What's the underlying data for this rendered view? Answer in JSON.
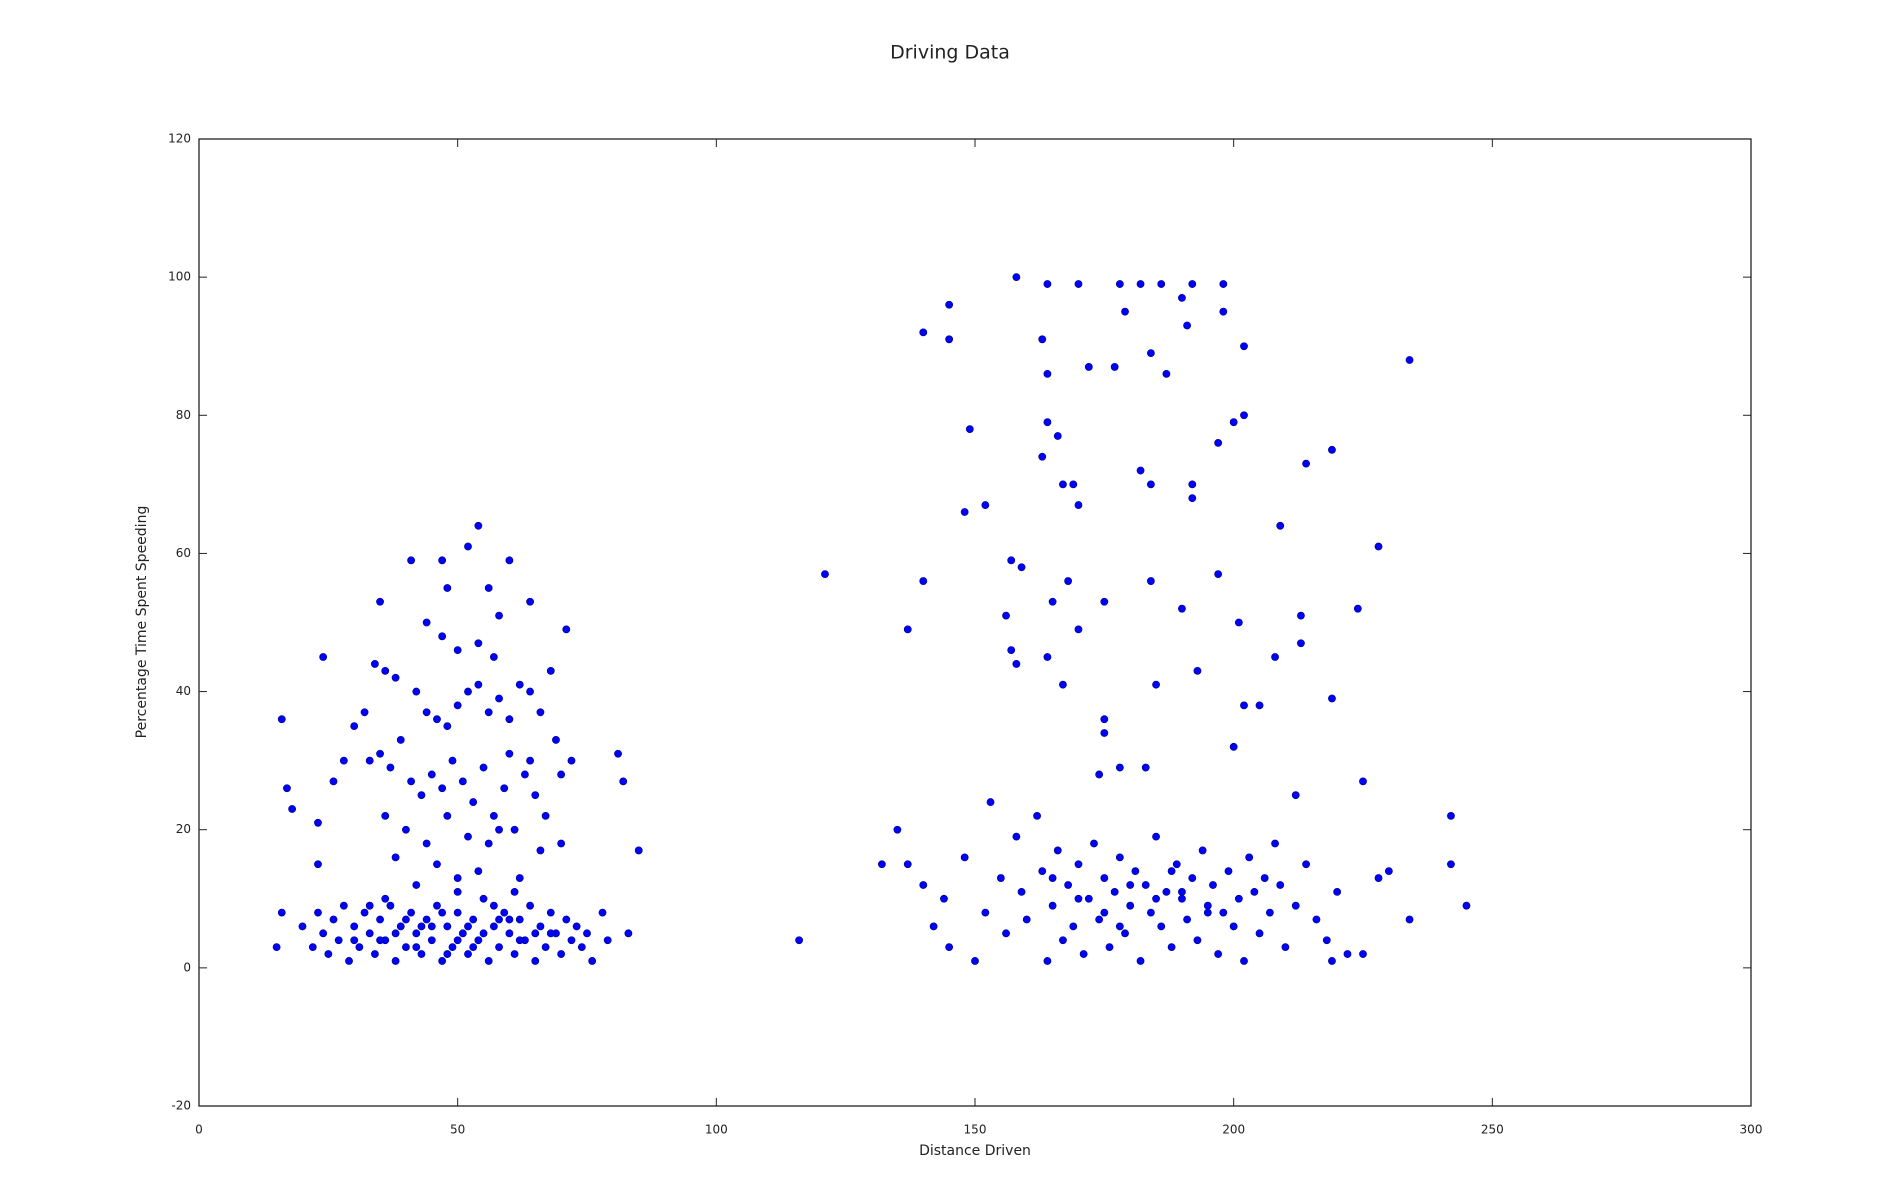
{
  "chart_data": {
    "type": "scatter",
    "title": "Driving Data",
    "x_label": "Distance Driven",
    "y_label": "Percentage Time Spent Speeding",
    "color": "#0000ff",
    "xlim": [
      0,
      300
    ],
    "xticks": [
      0,
      50,
      100,
      150,
      200,
      250,
      300
    ],
    "ylim": [
      -20,
      120
    ],
    "yticks": [
      -20,
      0,
      20,
      40,
      60,
      80,
      100,
      120
    ],
    "x": [
      158,
      164,
      170,
      178,
      182,
      186,
      192,
      198,
      145,
      179,
      198,
      140,
      145,
      163,
      190,
      191,
      202,
      234,
      172,
      177,
      164,
      187,
      184,
      149,
      164,
      200,
      202,
      197,
      214,
      219,
      163,
      166,
      182,
      167,
      169,
      184,
      192,
      192,
      148,
      152,
      170,
      209,
      228,
      121,
      140,
      157,
      159,
      168,
      184,
      197,
      156,
      165,
      175,
      190,
      224,
      137,
      170,
      201,
      213,
      213,
      157,
      158,
      164,
      208,
      193,
      167,
      185,
      219,
      202,
      205,
      175,
      175,
      200,
      174,
      178,
      183,
      225,
      212,
      242,
      116,
      245,
      234,
      242,
      54,
      52,
      47,
      60,
      41,
      16,
      17,
      18,
      85,
      81,
      82,
      16,
      15,
      83,
      24,
      71,
      35,
      64,
      56,
      48,
      23,
      23,
      69,
      20,
      22,
      23,
      24,
      25,
      26,
      27,
      28,
      29,
      30,
      31,
      32,
      33,
      34,
      35,
      36,
      37,
      38,
      39,
      40,
      41,
      42,
      43,
      44,
      45,
      46,
      47,
      48,
      49,
      50,
      51,
      52,
      53,
      54,
      55,
      56,
      57,
      58,
      59,
      60,
      61,
      62,
      63,
      64,
      65,
      66,
      67,
      68,
      69,
      70,
      71,
      72,
      73,
      74,
      75,
      76,
      78,
      79,
      45,
      50,
      52,
      48,
      55,
      58,
      42,
      38,
      62,
      47,
      53,
      57,
      43,
      35,
      65,
      60,
      40,
      30,
      68,
      33,
      50,
      61,
      36,
      34,
      36,
      38,
      42,
      44,
      46,
      48,
      50,
      52,
      54,
      56,
      58,
      60,
      62,
      64,
      66,
      32,
      30,
      33,
      35,
      37,
      39,
      41,
      43,
      45,
      47,
      49,
      51,
      53,
      55,
      57,
      59,
      61,
      63,
      65,
      67,
      40,
      44,
      48,
      52,
      56,
      58,
      38,
      46,
      54,
      62,
      42,
      50,
      60,
      64,
      68,
      54,
      50,
      57,
      47,
      28,
      70,
      72,
      26,
      36,
      66,
      70,
      44,
      58,
      135,
      137,
      132,
      140,
      142,
      145,
      144,
      148,
      150,
      152,
      153,
      155,
      156,
      158,
      159,
      160,
      162,
      163,
      164,
      165,
      166,
      167,
      168,
      169,
      170,
      171,
      172,
      173,
      174,
      175,
      176,
      177,
      178,
      179,
      180,
      181,
      182,
      183,
      184,
      185,
      186,
      187,
      188,
      189,
      190,
      191,
      192,
      193,
      194,
      195,
      196,
      197,
      198,
      199,
      200,
      201,
      202,
      203,
      204,
      205,
      206,
      207,
      208,
      209,
      210,
      212,
      214,
      216,
      218,
      219,
      220,
      222,
      225,
      228,
      230,
      170,
      180,
      185,
      175,
      190,
      165,
      195,
      178,
      188
    ],
    "values": [
      100,
      99,
      99,
      99,
      99,
      99,
      99,
      99,
      96,
      95,
      95,
      92,
      91,
      91,
      97,
      93,
      90,
      88,
      87,
      87,
      86,
      86,
      89,
      78,
      79,
      79,
      80,
      76,
      73,
      75,
      74,
      77,
      72,
      70,
      70,
      70,
      70,
      68,
      66,
      67,
      67,
      64,
      61,
      57,
      56,
      59,
      58,
      56,
      56,
      57,
      51,
      53,
      53,
      52,
      52,
      49,
      49,
      50,
      51,
      47,
      46,
      44,
      45,
      45,
      43,
      41,
      41,
      39,
      38,
      38,
      36,
      34,
      32,
      28,
      29,
      29,
      27,
      25,
      22,
      4,
      9,
      7,
      15,
      64,
      61,
      59,
      59,
      59,
      36,
      26,
      23,
      17,
      31,
      27,
      8,
      3,
      5,
      45,
      49,
      53,
      53,
      55,
      55,
      21,
      15,
      33,
      6,
      3,
      8,
      5,
      2,
      7,
      4,
      9,
      1,
      6,
      3,
      8,
      5,
      2,
      7,
      4,
      9,
      1,
      6,
      3,
      8,
      5,
      2,
      7,
      4,
      9,
      1,
      6,
      3,
      8,
      5,
      2,
      7,
      4,
      10,
      1,
      6,
      3,
      8,
      5,
      2,
      7,
      4,
      9,
      1,
      6,
      3,
      8,
      5,
      2,
      7,
      4,
      6,
      3,
      5,
      1,
      8,
      4,
      6,
      4,
      6,
      2,
      5,
      7,
      3,
      5,
      4,
      8,
      3,
      9,
      6,
      4,
      5,
      7,
      7,
      4,
      5,
      9,
      11,
      11,
      10,
      44,
      43,
      42,
      40,
      37,
      36,
      35,
      38,
      40,
      41,
      37,
      39,
      36,
      41,
      40,
      37,
      37,
      35,
      30,
      31,
      29,
      33,
      27,
      25,
      28,
      26,
      30,
      27,
      24,
      29,
      22,
      26,
      20,
      28,
      25,
      22,
      20,
      18,
      22,
      19,
      18,
      20,
      16,
      15,
      14,
      13,
      12,
      13,
      31,
      30,
      43,
      47,
      46,
      45,
      48,
      30,
      28,
      30,
      27,
      22,
      17,
      18,
      50,
      51,
      20,
      15,
      15,
      12,
      6,
      3,
      10,
      16,
      1,
      8,
      24,
      13,
      5,
      19,
      11,
      7,
      22,
      14,
      1,
      9,
      17,
      4,
      12,
      6,
      15,
      2,
      10,
      18,
      7,
      13,
      3,
      11,
      16,
      5,
      9,
      14,
      1,
      12,
      8,
      19,
      6,
      11,
      3,
      15,
      10,
      7,
      13,
      4,
      17,
      9,
      12,
      2,
      8,
      14,
      6,
      10,
      1,
      16,
      11,
      5,
      13,
      8,
      18,
      12,
      3,
      9,
      15,
      7,
      4,
      1,
      11,
      2,
      2,
      13,
      14,
      10,
      12,
      10,
      8,
      11,
      13,
      8,
      6,
      14
    ]
  }
}
